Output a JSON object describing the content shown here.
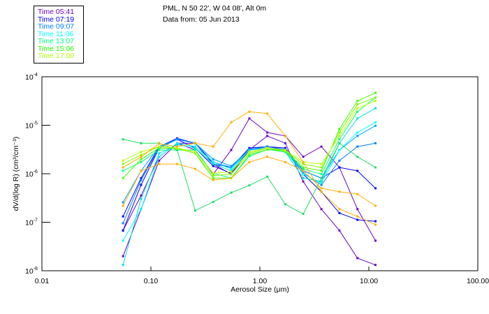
{
  "header": {
    "location": "PML, N 50 22', W 04 08', Alt 0m",
    "date": "Data from: 05 Jun 2013"
  },
  "chart_data": {
    "type": "line",
    "xlabel": "Aerosol Size (μm)",
    "ylabel": "dV/d(log R) (cm³/cm⁻³)",
    "xscale": "log",
    "yscale": "log",
    "xlim": [
      0.01,
      100
    ],
    "ylim": [
      1e-08,
      0.0001
    ],
    "xticks": [
      0.01,
      0.1,
      1,
      10,
      100
    ],
    "xtick_labels": [
      "0.01",
      "0.10",
      "1.00",
      "10.00",
      "100.00"
    ],
    "yticks": [
      0.0001,
      1e-05,
      1e-06,
      1e-07,
      1e-08
    ],
    "ytick_labels": [
      {
        "base": "10",
        "exp": "-4"
      },
      {
        "base": "10",
        "exp": "-5"
      },
      {
        "base": "10",
        "exp": "-6"
      },
      {
        "base": "10",
        "exp": "-7"
      },
      {
        "base": "10",
        "exp": "-8"
      }
    ],
    "legend_position": "top-left outside",
    "legend": [
      {
        "label": "Time 05:41",
        "color": "#6a00c8"
      },
      {
        "label": "Time 07:19",
        "color": "#0000ff"
      },
      {
        "label": "Time 09:07",
        "color": "#0080ff"
      },
      {
        "label": "Time 11:06",
        "color": "#00ffff"
      },
      {
        "label": "Time 13:07",
        "color": "#00ff80"
      },
      {
        "label": "Time 15:06",
        "color": "#20ff00"
      },
      {
        "label": "Time 17:00",
        "color": "#b0ff00"
      }
    ],
    "x": [
      0.0555,
      0.0813,
      0.119,
      0.174,
      0.255,
      0.373,
      0.546,
      0.8,
      1.17,
      1.71,
      2.5,
      3.67,
      5.37,
      7.86,
      11.5
    ],
    "series_note": "values are log10 of dV/d(log R)",
    "series": [
      {
        "color": "#6a00c8",
        "y_log10": [
          -7.7,
          -6.73,
          -5.73,
          -5.37,
          -5.37,
          -5.8,
          -6.01,
          -5.51,
          -5.22,
          -5.37,
          -6.16,
          -6.73,
          -7.17,
          -7.74,
          -7.88
        ]
      },
      {
        "color": "#6a00c8",
        "y_log10": [
          -7.17,
          -6.45,
          -5.65,
          -5.37,
          -5.51,
          -6.01,
          -5.51,
          -4.86,
          -5.15,
          -5.22,
          -5.65,
          -5.44,
          -5.87,
          -6.73,
          -7.38
        ]
      },
      {
        "color": "#0000ff",
        "y_log10": [
          -7.17,
          -6.23,
          -5.47,
          -5.29,
          -5.47,
          -5.84,
          -5.99,
          -5.51,
          -5.44,
          -5.51,
          -6.01,
          -6.37,
          -6.81,
          -6.95,
          -6.98
        ]
      },
      {
        "color": "#0000ff",
        "y_log10": [
          -6.88,
          -6.09,
          -5.44,
          -5.27,
          -5.37,
          -5.8,
          -5.87,
          -5.47,
          -5.44,
          -5.47,
          -5.94,
          -6.09,
          -5.87,
          -5.94,
          -6.3
        ]
      },
      {
        "color": "#0080ff",
        "y_log10": [
          -7.02,
          -6.13,
          -5.47,
          -5.29,
          -5.37,
          -5.76,
          -5.87,
          -5.5,
          -5.44,
          -5.5,
          -5.99,
          -6.23,
          -5.73,
          -5.44,
          -5.37
        ]
      },
      {
        "color": "#00a0ff",
        "y_log10": [
          -6.59,
          -5.94,
          -5.44,
          -5.29,
          -5.37,
          -5.7,
          -5.84,
          -5.51,
          -5.47,
          -5.51,
          -5.94,
          -6.09,
          -5.51,
          -5.22,
          -5.01
        ]
      },
      {
        "color": "#00ffff",
        "y_log10": [
          -7.38,
          -6.73,
          -5.65,
          -5.37,
          -5.44,
          -5.76,
          -5.9,
          -5.51,
          -5.47,
          -5.53,
          -6.01,
          -6.19,
          -5.51,
          -5.15,
          -4.94
        ]
      },
      {
        "color": "#00e0e0",
        "y_log10": [
          -7.88,
          -6.52,
          -5.58,
          -5.4,
          -5.47,
          -5.8,
          -5.94,
          -5.51,
          -5.47,
          -5.55,
          -6.09,
          -6.16,
          -5.37,
          -4.86,
          -4.65
        ]
      },
      {
        "color": "#00ff80",
        "y_log10": [
          -5.94,
          -5.76,
          -5.51,
          -5.51,
          -5.51,
          -5.99,
          -6.09,
          -5.64,
          -5.5,
          -5.55,
          -5.9,
          -6.01,
          -5.29,
          -4.72,
          -4.43
        ]
      },
      {
        "color": "#20e060",
        "y_log10": [
          -5.29,
          -5.37,
          -5.37,
          -5.51,
          -6.76,
          -6.58,
          -6.39,
          -6.24,
          -6.06,
          -6.63,
          -6.83,
          -6.09,
          -5.37,
          -5.65,
          -5.87
        ]
      },
      {
        "color": "#40ff00",
        "y_log10": [
          -6.09,
          -5.7,
          -5.47,
          -5.48,
          -5.58,
          -6.09,
          -6.09,
          -5.61,
          -5.5,
          -5.53,
          -5.87,
          -5.94,
          -5.08,
          -4.5,
          -4.33
        ]
      },
      {
        "color": "#80ff00",
        "y_log10": [
          -5.8,
          -5.61,
          -5.44,
          -5.47,
          -5.58,
          -6.04,
          -6.01,
          -5.58,
          -5.47,
          -5.53,
          -5.8,
          -5.87,
          -5.15,
          -4.57,
          -4.43
        ]
      },
      {
        "color": "#c0ff00",
        "y_log10": [
          -5.73,
          -5.55,
          -5.44,
          -5.47,
          -5.55,
          -5.99,
          -5.96,
          -5.55,
          -5.47,
          -5.51,
          -5.76,
          -5.8,
          -5.22,
          -4.65,
          -4.5
        ]
      },
      {
        "color": "#ffb000",
        "y_log10": [
          -6.66,
          -5.94,
          -5.8,
          -5.8,
          -5.9,
          -6.13,
          -6.09,
          -5.76,
          -5.65,
          -5.76,
          -5.94,
          -6.3,
          -6.37,
          -6.42,
          -6.66
        ]
      },
      {
        "color": "#ffb000",
        "y_log10": [
          -5.87,
          -5.65,
          -5.38,
          -5.44,
          -5.37,
          -5.44,
          -4.94,
          -4.72,
          -4.76,
          -5.22,
          -5.76,
          -6.37,
          -6.73,
          -6.88,
          -7.05
        ]
      }
    ]
  }
}
